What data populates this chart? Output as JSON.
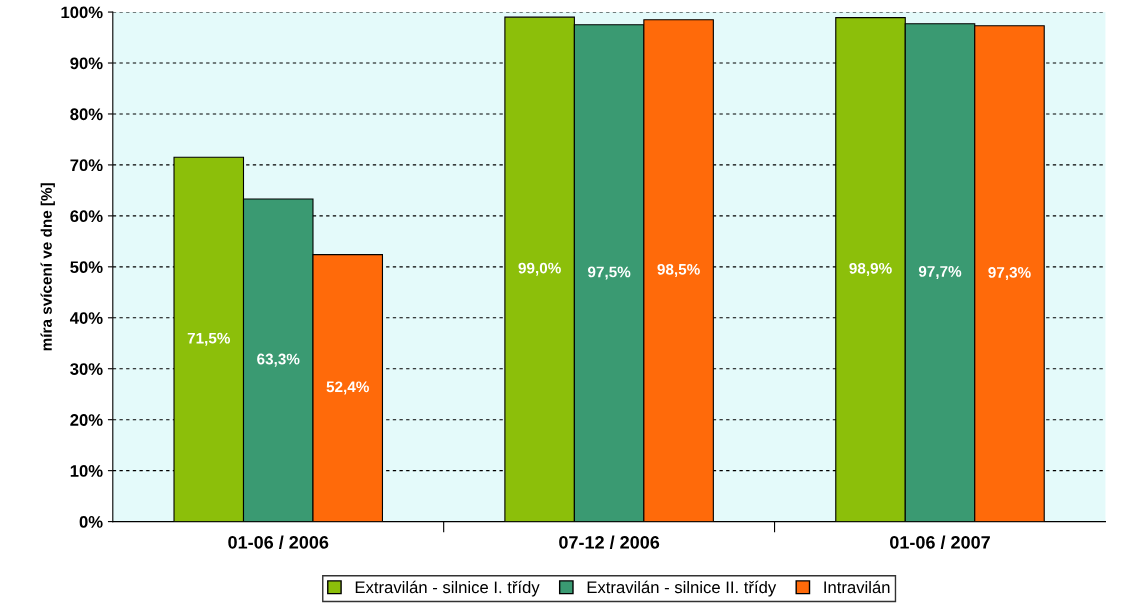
{
  "chart_data": {
    "type": "bar",
    "ylabel": "míra svícení ve dne [%]",
    "categories": [
      "01-06 / 2006",
      "07-12 / 2006",
      "01-06 / 2007"
    ],
    "series": [
      {
        "name": "Extravilán - silnice I. třídy",
        "color": "#8cbf0a",
        "values": [
          71.5,
          99.0,
          98.9
        ],
        "value_labels": [
          "71,5%",
          "99,0%",
          "98,9%"
        ]
      },
      {
        "name": "Extravilán - silnice II. třídy",
        "color": "#3a9a72",
        "values": [
          63.3,
          97.5,
          97.7
        ],
        "value_labels": [
          "63,3%",
          "97,5%",
          "97,7%"
        ]
      },
      {
        "name": "Intravilán",
        "color": "#ff6a0a",
        "values": [
          52.4,
          98.5,
          97.3
        ],
        "value_labels": [
          "52,4%",
          "98,5%",
          "97,3%"
        ]
      }
    ],
    "ylim": [
      0,
      100
    ],
    "yticks": [
      {
        "value": 0,
        "label": "0%"
      },
      {
        "value": 10,
        "label": "10%"
      },
      {
        "value": 20,
        "label": "20%"
      },
      {
        "value": 30,
        "label": "30%"
      },
      {
        "value": 40,
        "label": "40%"
      },
      {
        "value": 50,
        "label": "50%"
      },
      {
        "value": 60,
        "label": "60%"
      },
      {
        "value": 70,
        "label": "70%"
      },
      {
        "value": 80,
        "label": "80%"
      },
      {
        "value": 90,
        "label": "90%"
      },
      {
        "value": 100,
        "label": "100%"
      }
    ],
    "grid": "y",
    "legend": "bottom"
  }
}
